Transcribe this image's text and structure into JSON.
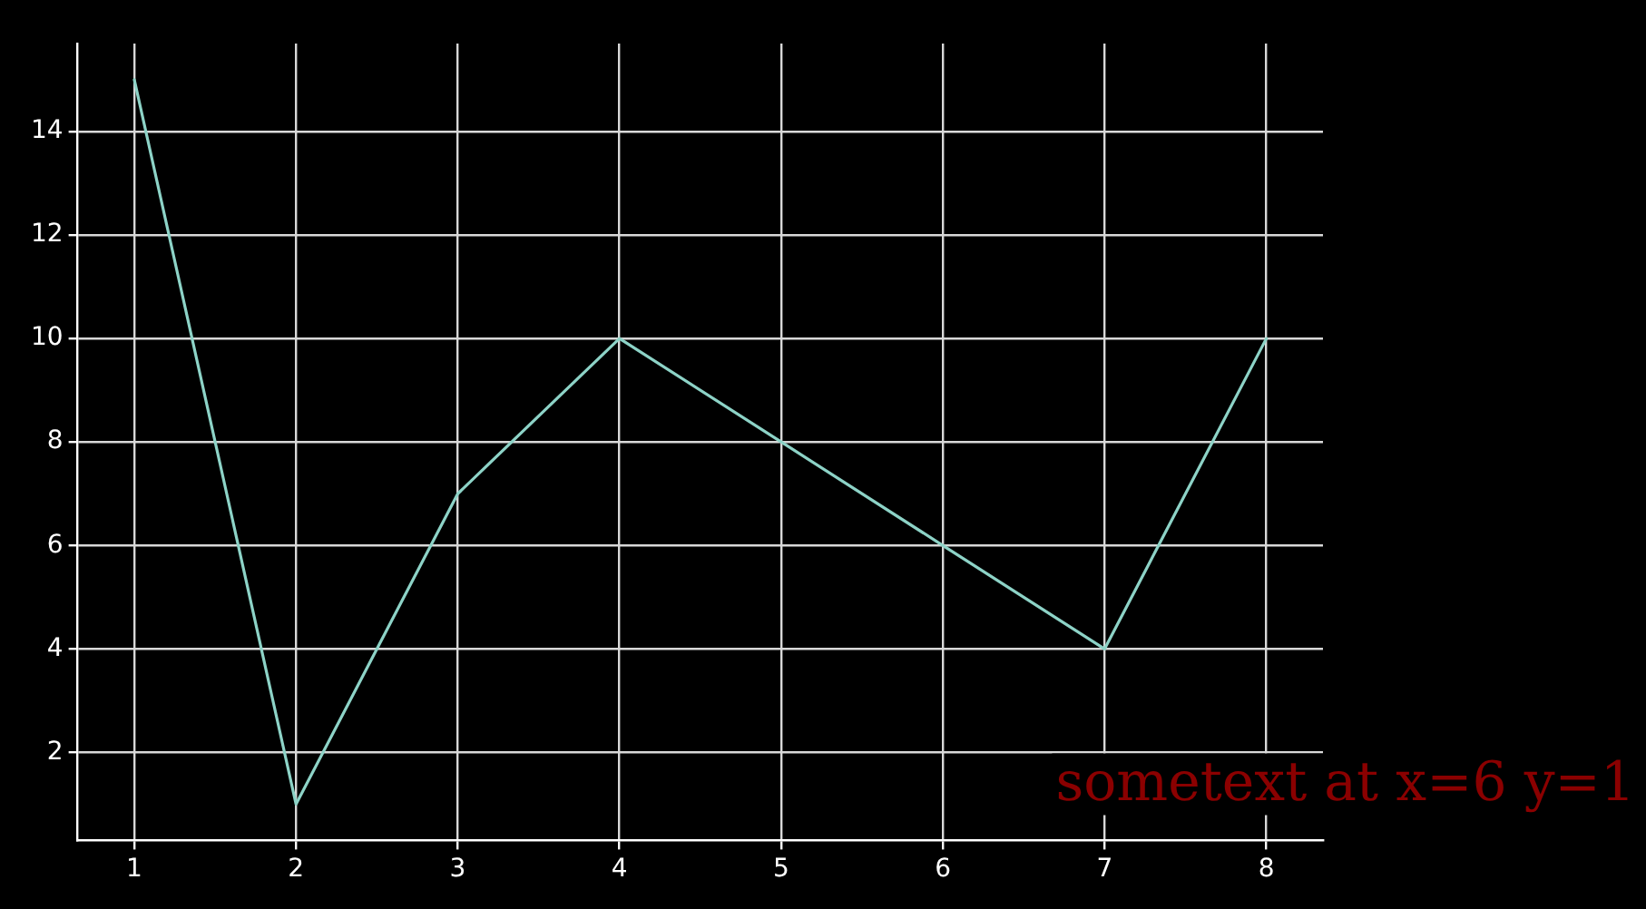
{
  "chart_data": {
    "type": "line",
    "x": [
      1,
      2,
      3,
      4,
      5,
      6,
      7,
      8
    ],
    "series": [
      {
        "color": "#8dd3c7",
        "values": [
          15,
          1,
          7,
          10,
          8,
          6,
          4,
          10
        ]
      }
    ],
    "xlim": [
      0.65,
      8.35
    ],
    "ylim": [
      0.3,
      15.7
    ],
    "xticks": [
      1,
      2,
      3,
      4,
      5,
      6,
      7,
      8
    ],
    "yticks": [
      2,
      4,
      6,
      8,
      10,
      12,
      14
    ],
    "grid": true,
    "legend": false,
    "marker": "none",
    "line_style": "solid",
    "annotations": [
      "sometext at x=6 y=1"
    ]
  }
}
